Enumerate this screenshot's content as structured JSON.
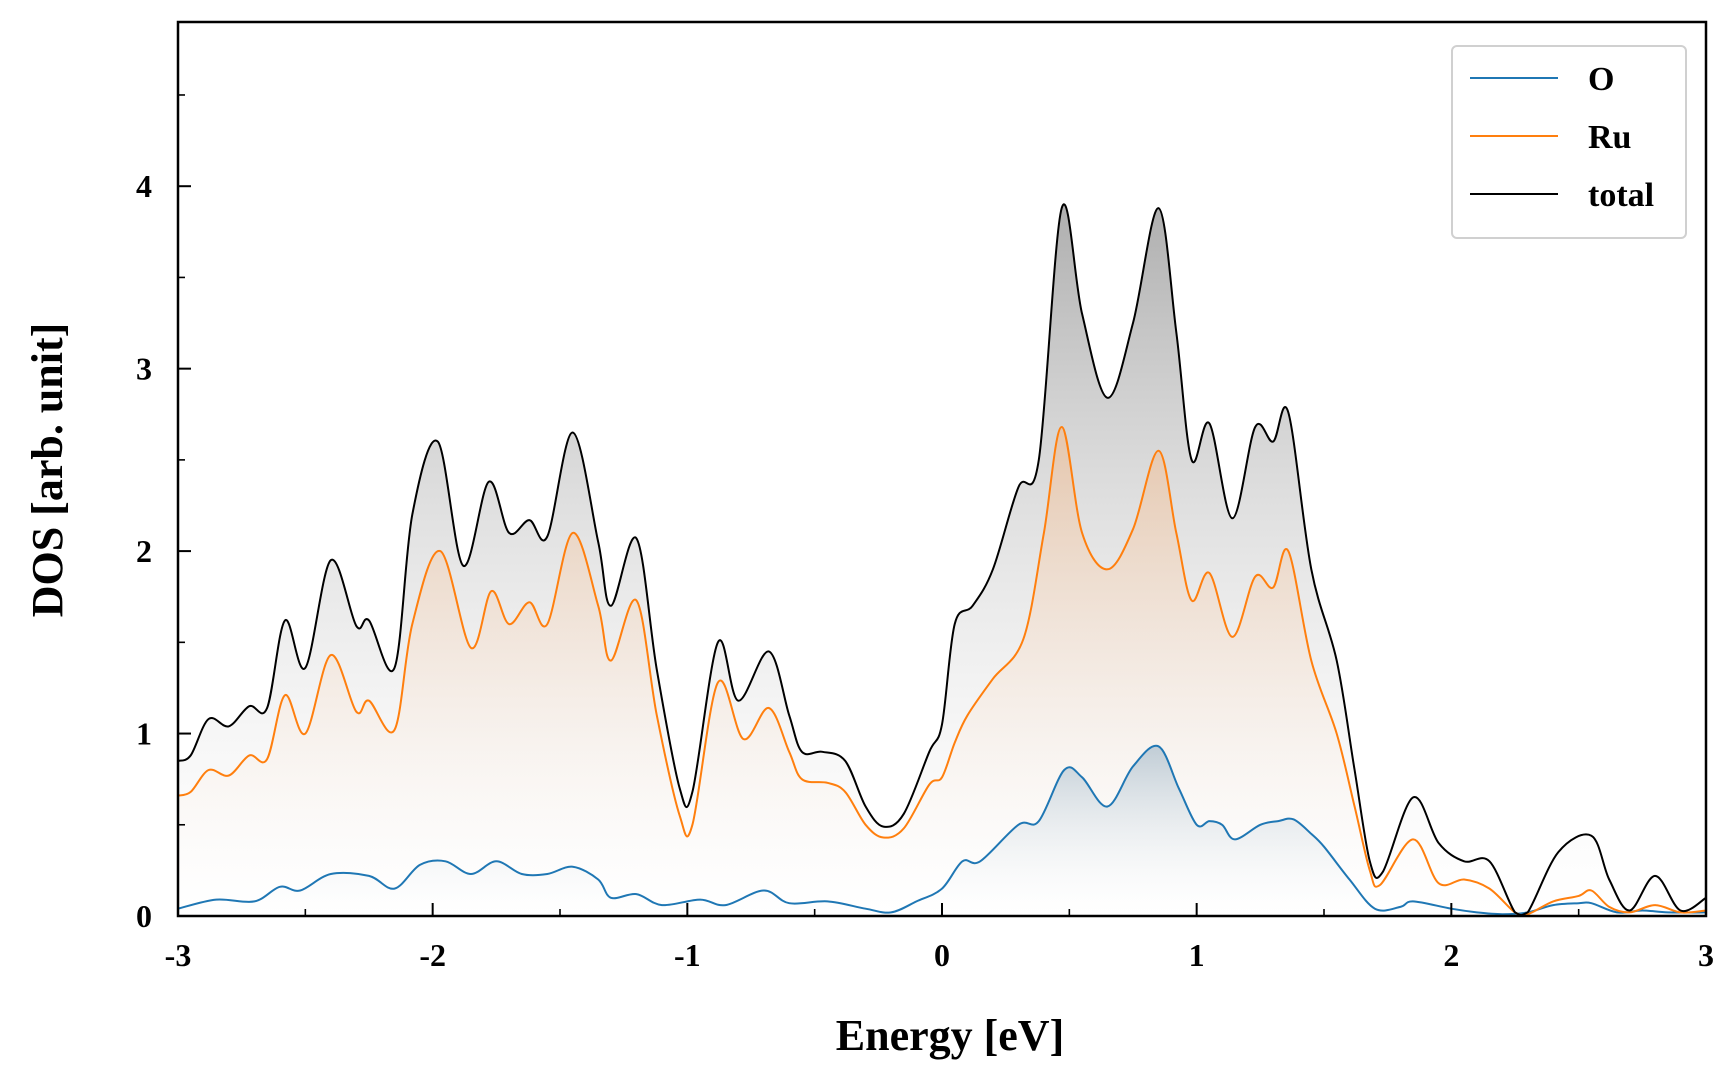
{
  "chart_data": {
    "type": "area",
    "xlabel": "Energy [eV]",
    "ylabel": "DOS [arb. unit]",
    "xlim": [
      -3,
      3
    ],
    "ylim": [
      0,
      4.9
    ],
    "x_ticks": [
      -3,
      -2,
      -1,
      0,
      1,
      2,
      3
    ],
    "x_tick_labels": [
      "-3",
      "-2",
      "-1",
      "0",
      "1",
      "2",
      "3"
    ],
    "y_ticks": [
      0,
      1,
      2,
      3,
      4
    ],
    "y_tick_labels": [
      "0",
      "1",
      "2",
      "3",
      "4"
    ],
    "grid": false,
    "legend_position": "top-right",
    "series": [
      {
        "name": "O",
        "color": "#1f77b4",
        "fill": "gradient",
        "points": [
          [
            -3.0,
            0.04
          ],
          [
            -2.85,
            0.09
          ],
          [
            -2.7,
            0.08
          ],
          [
            -2.6,
            0.16
          ],
          [
            -2.52,
            0.14
          ],
          [
            -2.4,
            0.23
          ],
          [
            -2.25,
            0.22
          ],
          [
            -2.15,
            0.15
          ],
          [
            -2.05,
            0.28
          ],
          [
            -1.95,
            0.3
          ],
          [
            -1.85,
            0.23
          ],
          [
            -1.75,
            0.3
          ],
          [
            -1.65,
            0.23
          ],
          [
            -1.55,
            0.23
          ],
          [
            -1.45,
            0.27
          ],
          [
            -1.35,
            0.2
          ],
          [
            -1.3,
            0.1
          ],
          [
            -1.2,
            0.12
          ],
          [
            -1.1,
            0.06
          ],
          [
            -0.95,
            0.09
          ],
          [
            -0.85,
            0.06
          ],
          [
            -0.7,
            0.14
          ],
          [
            -0.6,
            0.07
          ],
          [
            -0.45,
            0.08
          ],
          [
            -0.3,
            0.04
          ],
          [
            -0.2,
            0.02
          ],
          [
            -0.1,
            0.08
          ],
          [
            0.0,
            0.15
          ],
          [
            0.08,
            0.3
          ],
          [
            0.15,
            0.3
          ],
          [
            0.3,
            0.5
          ],
          [
            0.38,
            0.52
          ],
          [
            0.48,
            0.8
          ],
          [
            0.55,
            0.76
          ],
          [
            0.65,
            0.6
          ],
          [
            0.75,
            0.82
          ],
          [
            0.85,
            0.93
          ],
          [
            0.93,
            0.7
          ],
          [
            1.0,
            0.5
          ],
          [
            1.05,
            0.52
          ],
          [
            1.1,
            0.5
          ],
          [
            1.15,
            0.42
          ],
          [
            1.25,
            0.5
          ],
          [
            1.32,
            0.52
          ],
          [
            1.38,
            0.53
          ],
          [
            1.45,
            0.45
          ],
          [
            1.5,
            0.38
          ],
          [
            1.6,
            0.2
          ],
          [
            1.7,
            0.04
          ],
          [
            1.8,
            0.05
          ],
          [
            1.85,
            0.08
          ],
          [
            2.0,
            0.04
          ],
          [
            2.1,
            0.02
          ],
          [
            2.2,
            0.01
          ],
          [
            2.3,
            0.02
          ],
          [
            2.4,
            0.06
          ],
          [
            2.5,
            0.07
          ],
          [
            2.55,
            0.07
          ],
          [
            2.65,
            0.02
          ],
          [
            2.75,
            0.03
          ],
          [
            2.85,
            0.02
          ],
          [
            3.0,
            0.02
          ]
        ]
      },
      {
        "name": "Ru",
        "color": "#ff7f0e",
        "fill": "gradient",
        "points": [
          [
            -3.0,
            0.66
          ],
          [
            -2.95,
            0.68
          ],
          [
            -2.88,
            0.8
          ],
          [
            -2.8,
            0.77
          ],
          [
            -2.72,
            0.88
          ],
          [
            -2.65,
            0.86
          ],
          [
            -2.58,
            1.21
          ],
          [
            -2.5,
            1.0
          ],
          [
            -2.4,
            1.43
          ],
          [
            -2.3,
            1.12
          ],
          [
            -2.25,
            1.18
          ],
          [
            -2.15,
            1.02
          ],
          [
            -2.08,
            1.6
          ],
          [
            -1.97,
            2.0
          ],
          [
            -1.85,
            1.47
          ],
          [
            -1.77,
            1.78
          ],
          [
            -1.7,
            1.6
          ],
          [
            -1.62,
            1.72
          ],
          [
            -1.55,
            1.6
          ],
          [
            -1.45,
            2.1
          ],
          [
            -1.35,
            1.7
          ],
          [
            -1.3,
            1.4
          ],
          [
            -1.2,
            1.73
          ],
          [
            -1.12,
            1.1
          ],
          [
            -1.03,
            0.55
          ],
          [
            -0.98,
            0.5
          ],
          [
            -0.88,
            1.28
          ],
          [
            -0.78,
            0.97
          ],
          [
            -0.68,
            1.14
          ],
          [
            -0.6,
            0.9
          ],
          [
            -0.55,
            0.75
          ],
          [
            -0.45,
            0.73
          ],
          [
            -0.38,
            0.68
          ],
          [
            -0.3,
            0.5
          ],
          [
            -0.23,
            0.43
          ],
          [
            -0.15,
            0.48
          ],
          [
            -0.05,
            0.72
          ],
          [
            0.0,
            0.76
          ],
          [
            0.05,
            0.95
          ],
          [
            0.1,
            1.1
          ],
          [
            0.2,
            1.3
          ],
          [
            0.32,
            1.52
          ],
          [
            0.4,
            2.1
          ],
          [
            0.47,
            2.68
          ],
          [
            0.55,
            2.1
          ],
          [
            0.65,
            1.9
          ],
          [
            0.75,
            2.12
          ],
          [
            0.85,
            2.55
          ],
          [
            0.92,
            2.1
          ],
          [
            0.98,
            1.73
          ],
          [
            1.05,
            1.88
          ],
          [
            1.14,
            1.53
          ],
          [
            1.23,
            1.86
          ],
          [
            1.3,
            1.8
          ],
          [
            1.36,
            2.0
          ],
          [
            1.45,
            1.4
          ],
          [
            1.55,
            1.0
          ],
          [
            1.62,
            0.6
          ],
          [
            1.68,
            0.25
          ],
          [
            1.72,
            0.17
          ],
          [
            1.85,
            0.42
          ],
          [
            1.95,
            0.18
          ],
          [
            2.05,
            0.2
          ],
          [
            2.15,
            0.15
          ],
          [
            2.25,
            0.02
          ],
          [
            2.3,
            0.01
          ],
          [
            2.4,
            0.08
          ],
          [
            2.5,
            0.11
          ],
          [
            2.55,
            0.14
          ],
          [
            2.62,
            0.05
          ],
          [
            2.7,
            0.02
          ],
          [
            2.8,
            0.06
          ],
          [
            2.9,
            0.02
          ],
          [
            3.0,
            0.03
          ]
        ]
      },
      {
        "name": "total",
        "color": "#000000",
        "fill": "gradient",
        "points": [
          [
            -3.0,
            0.85
          ],
          [
            -2.95,
            0.88
          ],
          [
            -2.88,
            1.08
          ],
          [
            -2.8,
            1.04
          ],
          [
            -2.72,
            1.15
          ],
          [
            -2.65,
            1.14
          ],
          [
            -2.58,
            1.62
          ],
          [
            -2.5,
            1.36
          ],
          [
            -2.4,
            1.95
          ],
          [
            -2.3,
            1.59
          ],
          [
            -2.25,
            1.62
          ],
          [
            -2.15,
            1.36
          ],
          [
            -2.08,
            2.2
          ],
          [
            -1.98,
            2.6
          ],
          [
            -1.88,
            1.92
          ],
          [
            -1.78,
            2.38
          ],
          [
            -1.7,
            2.1
          ],
          [
            -1.62,
            2.17
          ],
          [
            -1.55,
            2.08
          ],
          [
            -1.45,
            2.65
          ],
          [
            -1.35,
            2.05
          ],
          [
            -1.3,
            1.7
          ],
          [
            -1.2,
            2.07
          ],
          [
            -1.12,
            1.35
          ],
          [
            -1.03,
            0.7
          ],
          [
            -0.98,
            0.68
          ],
          [
            -0.88,
            1.5
          ],
          [
            -0.8,
            1.18
          ],
          [
            -0.68,
            1.45
          ],
          [
            -0.6,
            1.1
          ],
          [
            -0.55,
            0.9
          ],
          [
            -0.47,
            0.9
          ],
          [
            -0.38,
            0.85
          ],
          [
            -0.3,
            0.6
          ],
          [
            -0.23,
            0.49
          ],
          [
            -0.15,
            0.56
          ],
          [
            -0.05,
            0.9
          ],
          [
            0.0,
            1.05
          ],
          [
            0.05,
            1.6
          ],
          [
            0.12,
            1.7
          ],
          [
            0.2,
            1.9
          ],
          [
            0.3,
            2.35
          ],
          [
            0.38,
            2.5
          ],
          [
            0.47,
            3.88
          ],
          [
            0.55,
            3.3
          ],
          [
            0.65,
            2.84
          ],
          [
            0.75,
            3.25
          ],
          [
            0.85,
            3.88
          ],
          [
            0.92,
            3.2
          ],
          [
            0.98,
            2.5
          ],
          [
            1.05,
            2.7
          ],
          [
            1.14,
            2.18
          ],
          [
            1.23,
            2.68
          ],
          [
            1.3,
            2.6
          ],
          [
            1.36,
            2.76
          ],
          [
            1.45,
            1.9
          ],
          [
            1.55,
            1.4
          ],
          [
            1.62,
            0.8
          ],
          [
            1.68,
            0.3
          ],
          [
            1.73,
            0.24
          ],
          [
            1.85,
            0.65
          ],
          [
            1.95,
            0.4
          ],
          [
            2.05,
            0.3
          ],
          [
            2.15,
            0.3
          ],
          [
            2.25,
            0.02
          ],
          [
            2.3,
            0.02
          ],
          [
            2.42,
            0.35
          ],
          [
            2.55,
            0.44
          ],
          [
            2.62,
            0.2
          ],
          [
            2.7,
            0.03
          ],
          [
            2.8,
            0.22
          ],
          [
            2.9,
            0.03
          ],
          [
            3.0,
            0.1
          ]
        ]
      }
    ]
  }
}
